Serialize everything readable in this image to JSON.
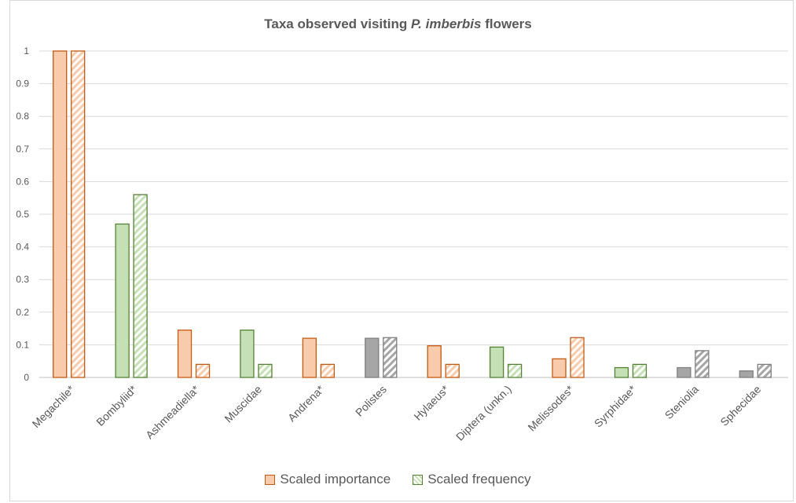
{
  "chart_data": {
    "type": "bar",
    "title_prefix": "Taxa observed visiting ",
    "title_italic": "P. imberbis",
    "title_suffix": " flowers",
    "xlabel": "",
    "ylabel": "",
    "ylim": [
      0,
      1
    ],
    "yticks": [
      "0",
      "0.1",
      "0.2",
      "0.3",
      "0.4",
      "0.5",
      "0.6",
      "0.7",
      "0.8",
      "0.9",
      "1"
    ],
    "grid": true,
    "legend_position": "bottom",
    "categories": [
      "Megachile*",
      "Bombyliid*",
      "Ashmeadiella*",
      "Muscidae",
      "Andrena*",
      "Polistes",
      "Hylaeus*",
      "Diptera (unkn.)",
      "Melissodes*",
      "Syrphidae*",
      "Steniolia",
      "Sphecidae"
    ],
    "category_group": [
      "bee",
      "fly",
      "bee",
      "fly",
      "bee",
      "wasp",
      "bee",
      "fly",
      "bee",
      "fly",
      "wasp",
      "wasp"
    ],
    "series": [
      {
        "name": "Scaled importance",
        "pattern": "solid",
        "values": [
          1.0,
          0.47,
          0.145,
          0.145,
          0.12,
          0.12,
          0.097,
          0.093,
          0.057,
          0.03,
          0.03,
          0.02
        ]
      },
      {
        "name": "Scaled frequency",
        "pattern": "hatched",
        "values": [
          1.0,
          0.56,
          0.04,
          0.04,
          0.04,
          0.122,
          0.04,
          0.04,
          0.122,
          0.04,
          0.082,
          0.04
        ]
      }
    ],
    "group_colors": {
      "bee": {
        "fill": "#f8cbad",
        "stroke": "#c55a11"
      },
      "fly": {
        "fill": "#c5e0b4",
        "stroke": "#548235"
      },
      "wasp": {
        "fill": "#a6a6a6",
        "stroke": "#7f7f7f"
      }
    },
    "legend_colors": [
      {
        "fill": "#f8cbad",
        "stroke": "#c55a11"
      },
      {
        "fill": "#c5e0b4",
        "stroke": "#548235"
      }
    ],
    "colors": {
      "grid": "#d9d9d9",
      "axis": "#bfbfbf",
      "text": "#595959"
    }
  }
}
